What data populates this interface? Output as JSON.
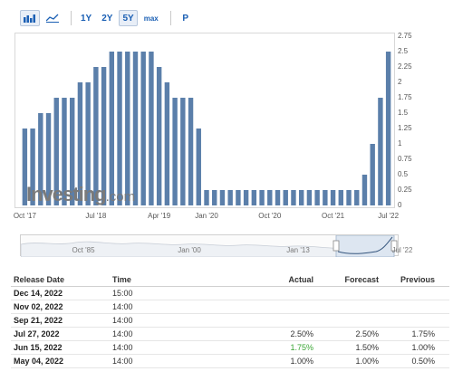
{
  "toolbar": {
    "ranges": [
      "1Y",
      "2Y",
      "5Y",
      "max"
    ],
    "active_range": "5Y",
    "p_button": "P"
  },
  "chart_data": {
    "type": "bar",
    "bar_color": "#5b7faa",
    "ylim": [
      0,
      2.75
    ],
    "yticks": [
      "0",
      "0.25",
      "0.5",
      "0.75",
      "1",
      "1.25",
      "1.5",
      "1.75",
      "2",
      "2.25",
      "2.5",
      "2.75"
    ],
    "xticks": [
      "Oct '17",
      "Jul '18",
      "Apr '19",
      "Jan '20",
      "Oct '20",
      "Oct '21",
      "Jul '22"
    ],
    "values": [
      1.25,
      1.25,
      1.5,
      1.5,
      1.75,
      1.75,
      1.75,
      2.0,
      2.0,
      2.25,
      2.25,
      2.5,
      2.5,
      2.5,
      2.5,
      2.5,
      2.5,
      2.25,
      2.0,
      1.75,
      1.75,
      1.75,
      1.25,
      0.25,
      0.25,
      0.25,
      0.25,
      0.25,
      0.25,
      0.25,
      0.25,
      0.25,
      0.25,
      0.25,
      0.25,
      0.25,
      0.25,
      0.25,
      0.25,
      0.25,
      0.25,
      0.25,
      0.25,
      0.5,
      1.0,
      1.75,
      2.5
    ]
  },
  "watermark": {
    "main": "Investing",
    "suffix": ".com"
  },
  "navigator": {
    "labels": [
      "Oct '85",
      "Jan '00",
      "Jan '13",
      "Jul '22"
    ]
  },
  "table": {
    "headers": {
      "date": "Release Date",
      "time": "Time",
      "actual": "Actual",
      "forecast": "Forecast",
      "previous": "Previous"
    },
    "rows": [
      {
        "date": "Dec 14, 2022",
        "time": "15:00",
        "actual": "",
        "forecast": "",
        "previous": ""
      },
      {
        "date": "Nov 02, 2022",
        "time": "14:00",
        "actual": "",
        "forecast": "",
        "previous": ""
      },
      {
        "date": "Sep 21, 2022",
        "time": "14:00",
        "actual": "",
        "forecast": "",
        "previous": ""
      },
      {
        "date": "Jul 27, 2022",
        "time": "14:00",
        "actual": "2.50%",
        "forecast": "2.50%",
        "previous": "1.75%"
      },
      {
        "date": "Jun 15, 2022",
        "time": "14:00",
        "actual": "1.75%",
        "forecast": "1.50%",
        "previous": "1.00%",
        "actual_color": "#3aa534"
      },
      {
        "date": "May 04, 2022",
        "time": "14:00",
        "actual": "1.00%",
        "forecast": "1.00%",
        "previous": "0.50%"
      }
    ]
  }
}
